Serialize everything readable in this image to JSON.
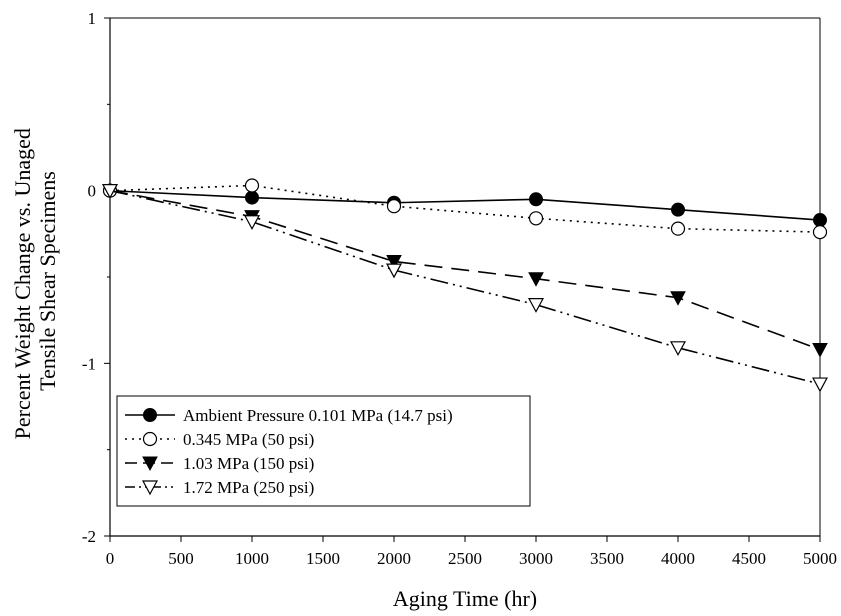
{
  "chart_data": {
    "type": "line",
    "title": "",
    "xlabel": "Aging Time (hr)",
    "ylabel": [
      "Percent Weight Change vs. Unaged",
      "Tensile Shear Specimens"
    ],
    "xlim": [
      0,
      5000
    ],
    "ylim": [
      -2,
      1
    ],
    "xticks": [
      "0",
      "500",
      "1000",
      "1500",
      "2000",
      "2500",
      "3000",
      "3500",
      "4000",
      "4500",
      "5000"
    ],
    "yticks": [
      "-2",
      "-1",
      "0",
      "1"
    ],
    "grid": false,
    "legend_position": "bottom-left",
    "x": [
      0,
      1000,
      2000,
      3000,
      4000,
      5000
    ],
    "series": [
      {
        "name": "Ambient Pressure 0.101 MPa (14.7 psi)",
        "marker": "filled-circle",
        "line": "solid",
        "values": [
          0,
          -0.04,
          -0.07,
          -0.05,
          -0.11,
          -0.17
        ]
      },
      {
        "name": "0.345 MPa (50 psi)",
        "marker": "open-circle",
        "line": "dotted",
        "values": [
          0,
          0.03,
          -0.09,
          -0.16,
          -0.22,
          -0.24
        ]
      },
      {
        "name": "1.03 MPa (150 psi)",
        "marker": "filled-triangle-down",
        "line": "long-dash",
        "values": [
          0,
          -0.15,
          -0.41,
          -0.51,
          -0.62,
          -0.92
        ]
      },
      {
        "name": "1.72 MPa (250 psi)",
        "marker": "open-triangle-down",
        "line": "dash-dot-dot",
        "values": [
          0,
          -0.18,
          -0.46,
          -0.66,
          -0.91,
          -1.12
        ]
      }
    ]
  }
}
